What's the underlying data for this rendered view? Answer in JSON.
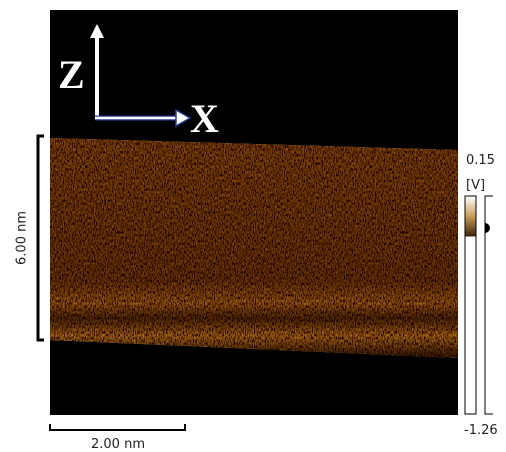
{
  "axes": {
    "z_label": "Z",
    "x_label": "X"
  },
  "scale_bars": {
    "vertical": "6.00 nm",
    "horizontal": "2.00 nm"
  },
  "color_scale": {
    "max": "0.15",
    "unit": "[V]",
    "min": "-1.26"
  }
}
